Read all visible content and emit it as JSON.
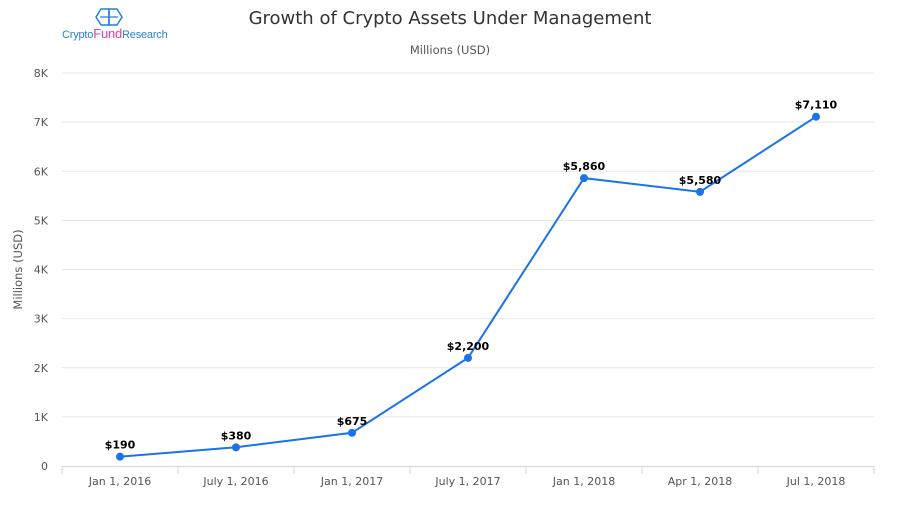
{
  "logo": {
    "part1": "Crypto",
    "part2": "Fund",
    "part3": "Research"
  },
  "chart_data": {
    "type": "line",
    "title": "Growth of Crypto Assets Under Management",
    "subtitle": "Millions (USD)",
    "xlabel": "",
    "ylabel": "Millions (USD)",
    "categories": [
      "Jan 1, 2016",
      "July 1, 2016",
      "Jan 1, 2017",
      "July 1, 2017",
      "Jan 1, 2018",
      "Apr 1, 2018",
      "Jul 1, 2018"
    ],
    "values": [
      190,
      380,
      675,
      2200,
      5860,
      5580,
      7110
    ],
    "data_labels": [
      "$190",
      "$380",
      "$675",
      "$2,200",
      "$5,860",
      "$5,580",
      "$7,110"
    ],
    "ylim": [
      0,
      8000
    ],
    "yticks": [
      0,
      1000,
      2000,
      3000,
      4000,
      5000,
      6000,
      7000,
      8000
    ],
    "ytick_labels": [
      "0",
      "1K",
      "2K",
      "3K",
      "4K",
      "5K",
      "6K",
      "7K",
      "8K"
    ],
    "grid": true,
    "line_color": "#1a73e8"
  }
}
